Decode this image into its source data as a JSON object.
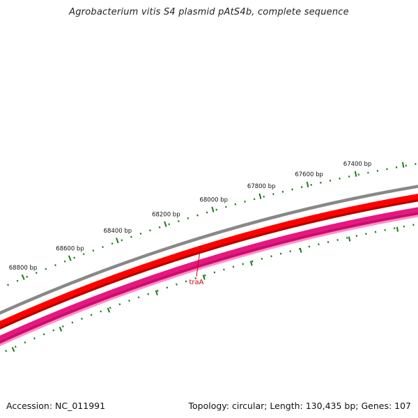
{
  "title": "Agrobacterium vitis S4 plasmid pAtS4b, complete sequence",
  "footer": {
    "accession": "Accession: NC_011991",
    "summary": "Topology: circular; Length: 130,435 bp; Genes: 107"
  },
  "scale_labels": [
    "68800 bp",
    "68600 bp",
    "68400 bp",
    "68200 bp",
    "68000 bp",
    "67800 bp",
    "67600 bp",
    "67400 bp"
  ],
  "genes": [
    {
      "name": "traA",
      "color": "#cc0000"
    }
  ],
  "colors": {
    "tick": "#1a7a1a",
    "backbone": "#888888",
    "forward_track": "#ff0000",
    "forward_track_dark": "#b00000",
    "reverse_track": "#e8177f",
    "reverse_track_light": "#ff8fc8",
    "gene_label": "#cc0000"
  }
}
